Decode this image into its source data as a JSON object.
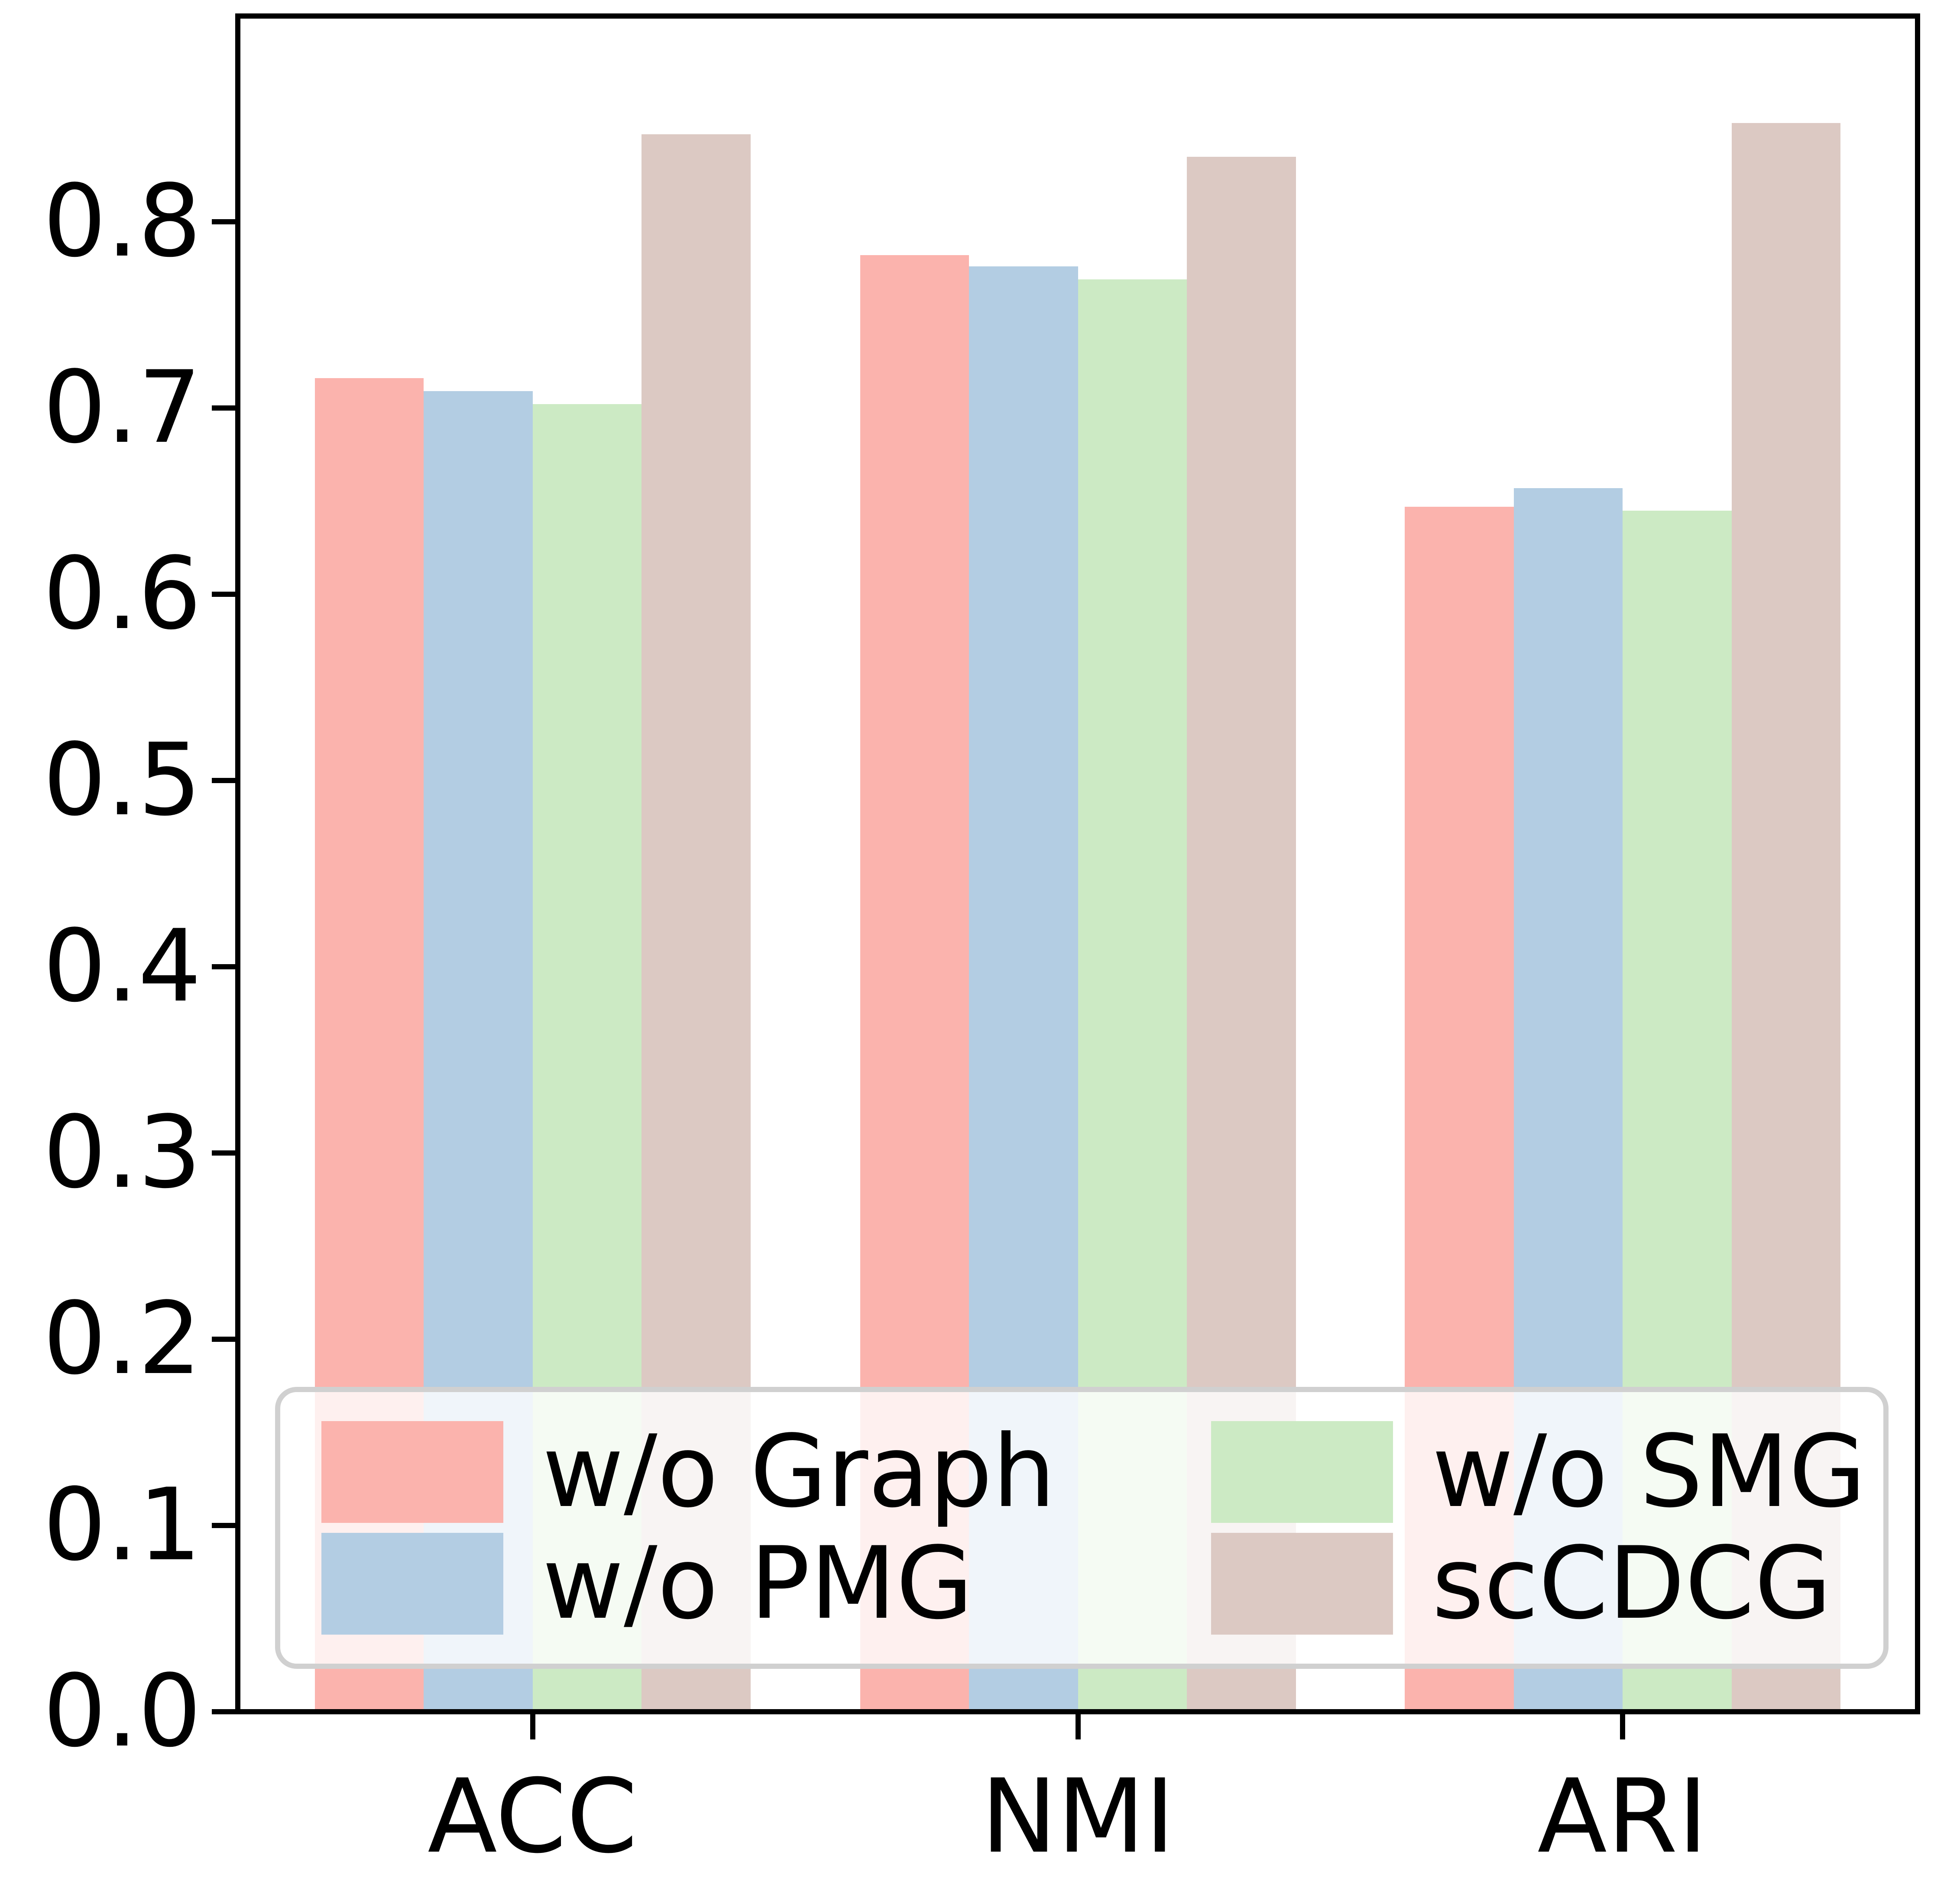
{
  "chart_data": {
    "type": "bar",
    "title": "",
    "xlabel": "",
    "ylabel": "",
    "categories": [
      "ACC",
      "NMI",
      "ARI"
    ],
    "series": [
      {
        "name": "w/o Graph",
        "color": "#FBB3AD",
        "values": [
          0.716,
          0.782,
          0.647
        ]
      },
      {
        "name": "w/o PMG",
        "color": "#B3CDE3",
        "values": [
          0.709,
          0.776,
          0.657
        ]
      },
      {
        "name": "w/o SMG",
        "color": "#CCEAC4",
        "values": [
          0.702,
          0.769,
          0.645
        ]
      },
      {
        "name": "scCDCG",
        "color": "#DCC9C3",
        "values": [
          0.847,
          0.835,
          0.853
        ]
      }
    ],
    "ylim": [
      0.0,
      0.91
    ],
    "yticks": [
      0.0,
      0.1,
      0.2,
      0.3,
      0.4,
      0.5,
      0.6,
      0.7,
      0.8
    ],
    "ytick_labels": [
      "0.0",
      "0.1",
      "0.2",
      "0.3",
      "0.4",
      "0.5",
      "0.6",
      "0.7",
      "0.8"
    ],
    "grid": false,
    "legend": {
      "position": "lower center",
      "columns": 2,
      "order": "column-major",
      "border_color": "#d0d0d0",
      "background": "rgba(255,255,255,0.8)"
    },
    "axis_color": "#000000"
  }
}
